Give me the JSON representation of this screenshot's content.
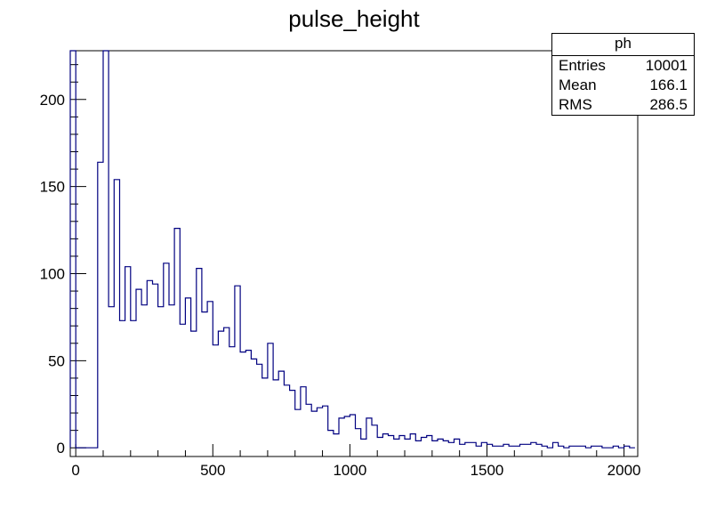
{
  "title": "pulse_height",
  "stats": {
    "name": "ph",
    "rows": [
      {
        "label": "Entries",
        "value": "10001"
      },
      {
        "label": "Mean",
        "value": "166.1"
      },
      {
        "label": "RMS",
        "value": "286.5"
      }
    ]
  },
  "colors": {
    "line": "#000080",
    "axis": "#000000",
    "background": "#ffffff"
  },
  "chart_data": {
    "type": "histogram",
    "title": "pulse_height",
    "xlabel": "",
    "ylabel": "",
    "xlim": [
      -20,
      2050
    ],
    "ylim": [
      -5,
      228
    ],
    "bin_width": 20,
    "bin_start": -20,
    "xticks": [
      0,
      500,
      1000,
      1500,
      2000
    ],
    "yticks": [
      0,
      50,
      100,
      150,
      200
    ],
    "grid": false,
    "values": [
      228,
      0,
      0,
      0,
      0,
      164,
      228,
      81,
      154,
      73,
      104,
      73,
      91,
      82,
      96,
      94,
      81,
      106,
      82,
      126,
      71,
      86,
      67,
      103,
      78,
      84,
      59,
      67,
      69,
      58,
      93,
      55,
      56,
      51,
      48,
      40,
      60,
      39,
      44,
      36,
      33,
      22,
      35,
      25,
      21,
      23,
      24,
      10,
      8,
      17,
      18,
      19,
      11,
      5,
      17,
      13,
      6,
      8,
      7,
      5,
      7,
      5,
      8,
      4,
      6,
      7,
      4,
      5,
      4,
      3,
      5,
      2,
      3,
      3,
      1,
      3,
      2,
      1,
      1,
      2,
      1,
      1,
      2,
      2,
      3,
      2,
      1,
      0,
      3,
      1,
      0,
      1,
      1,
      1,
      0,
      1,
      1,
      0,
      0,
      1,
      0,
      1,
      0
    ]
  }
}
